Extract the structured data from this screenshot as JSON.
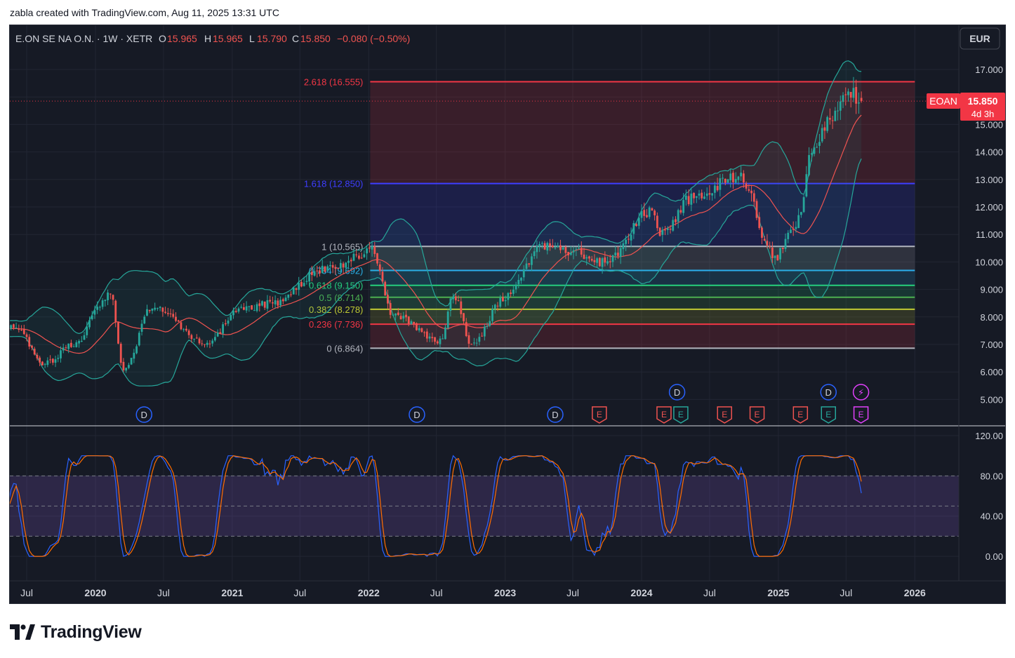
{
  "caption": "zabla created with TradingView.com, Aug 11, 2025 13:31 UTC",
  "footer": {
    "brand": "TradingView"
  },
  "header": {
    "symbol": "E.ON SE NA O.N. · 1W · XETR",
    "o_label": "O",
    "o_val": "15.965",
    "h_label": "H",
    "h_val": "15.965",
    "l_label": "L",
    "l_val": "15.790",
    "c_label": "C",
    "c_val": "15.850",
    "change": "−0.080 (−0.50%)"
  },
  "currency_button": "EUR",
  "price_tag": {
    "ticker": "EOAN",
    "price": "15.850",
    "countdown": "4d 3h"
  },
  "colors": {
    "up": "#26a69a",
    "down": "#ef5350",
    "bb_band": "#26a69a",
    "bb_basis": "#ef5350",
    "stoch_k": "#2962ff",
    "stoch_d": "#ff6d00",
    "bg": "#161a25"
  },
  "chart_data": [
    {
      "type": "candlestick",
      "title": "",
      "xlabel": "",
      "ylabel": "",
      "ylim": [
        4.2,
        17.6
      ],
      "x_ticks": [
        "Jul",
        "2020",
        "Jul",
        "2021",
        "Jul",
        "2022",
        "Jul",
        "2023",
        "Jul",
        "2024",
        "Jul",
        "2025",
        "Jul",
        "2026"
      ],
      "y_ticks": [
        "17.000",
        "16.000",
        "15.000",
        "14.000",
        "13.000",
        "12.000",
        "11.000",
        "10.000",
        "9.000",
        "8.000",
        "7.000",
        "6.000",
        "5.000"
      ],
      "anchors": [
        {
          "date": "2019-06-01",
          "close": 7.6
        },
        {
          "date": "2019-08-20",
          "close": 6.3
        },
        {
          "date": "2019-11-01",
          "close": 7.0
        },
        {
          "date": "2020-02-10",
          "close": 8.8
        },
        {
          "date": "2020-03-16",
          "close": 6.0
        },
        {
          "date": "2020-06-01",
          "close": 8.4
        },
        {
          "date": "2020-10-25",
          "close": 7.0
        },
        {
          "date": "2021-01-20",
          "close": 8.3
        },
        {
          "date": "2021-04-20",
          "close": 8.5
        },
        {
          "date": "2021-09-01",
          "close": 9.7
        },
        {
          "date": "2022-01-10",
          "close": 10.4
        },
        {
          "date": "2022-03-07",
          "close": 8.1
        },
        {
          "date": "2022-07-10",
          "close": 7.1
        },
        {
          "date": "2022-08-15",
          "close": 8.8
        },
        {
          "date": "2022-10-05",
          "close": 7.0
        },
        {
          "date": "2022-12-31",
          "close": 8.7
        },
        {
          "date": "2023-04-10",
          "close": 10.6
        },
        {
          "date": "2023-06-20",
          "close": 10.4
        },
        {
          "date": "2023-09-25",
          "close": 10.0
        },
        {
          "date": "2024-01-20",
          "close": 11.8
        },
        {
          "date": "2024-03-01",
          "close": 11.0
        },
        {
          "date": "2024-05-10",
          "close": 12.3
        },
        {
          "date": "2024-09-15",
          "close": 13.1
        },
        {
          "date": "2024-12-25",
          "close": 10.2
        },
        {
          "date": "2025-02-15",
          "close": 11.3
        },
        {
          "date": "2025-04-10",
          "close": 14.4
        },
        {
          "date": "2025-05-25",
          "close": 15.3
        },
        {
          "date": "2025-07-10",
          "close": 16.2
        },
        {
          "date": "2025-08-11",
          "close": 15.85
        }
      ],
      "fib": {
        "start_date": "2022-01-05",
        "end_date": "2026-01-01",
        "levels": [
          {
            "label": "2.618 (16.555)",
            "value": 16.555,
            "color": "#f23645"
          },
          {
            "label": "1.618 (12.850)",
            "value": 12.85,
            "color": "#3e3eff"
          },
          {
            "label": "1 (10.565)",
            "value": 10.565,
            "color": "#b2b5be"
          },
          {
            "label": "0.764 (9.692)",
            "value": 9.692,
            "color": "#2bb0ee"
          },
          {
            "label": "0.618 (9.150)",
            "value": 9.15,
            "color": "#26d07c"
          },
          {
            "label": "0.5 (8.714)",
            "value": 8.714,
            "color": "#4caf50"
          },
          {
            "label": "0.382 (8.278)",
            "value": 8.278,
            "color": "#c0ca33"
          },
          {
            "label": "0.236 (7.736)",
            "value": 7.736,
            "color": "#f23645"
          },
          {
            "label": "0 (6.864)",
            "value": 6.864,
            "color": "#b2b5be"
          }
        ]
      },
      "events": [
        {
          "date": "2020-05-10",
          "kind": "D",
          "row": 1
        },
        {
          "date": "2022-05-10",
          "kind": "D",
          "row": 1
        },
        {
          "date": "2023-05-15",
          "kind": "D",
          "row": 1
        },
        {
          "date": "2024-04-05",
          "kind": "D",
          "row": 0
        },
        {
          "date": "2025-05-15",
          "kind": "D",
          "row": 0
        },
        {
          "date": "2025-08-10",
          "kind": "⚡",
          "row": 0
        },
        {
          "date": "2023-09-10",
          "kind": "E",
          "row": 1,
          "color": "#ef5350"
        },
        {
          "date": "2024-03-01",
          "kind": "E",
          "row": 1,
          "color": "#ef5350"
        },
        {
          "date": "2024-04-15",
          "kind": "E",
          "row": 1,
          "color": "#26a69a"
        },
        {
          "date": "2024-08-10",
          "kind": "E",
          "row": 1,
          "color": "#ef5350"
        },
        {
          "date": "2024-11-05",
          "kind": "E",
          "row": 1,
          "color": "#ef5350"
        },
        {
          "date": "2025-03-01",
          "kind": "E",
          "row": 1,
          "color": "#ef5350"
        },
        {
          "date": "2025-05-15",
          "kind": "E",
          "row": 1,
          "color": "#26a69a"
        },
        {
          "date": "2025-08-10",
          "kind": "E",
          "row": 1,
          "color": "#e040fb"
        }
      ]
    },
    {
      "type": "line",
      "title": "",
      "ylim": [
        -20,
        120
      ],
      "y_ticks": [
        "120.00",
        "80.00",
        "40.00",
        "0.00"
      ],
      "bands": [
        20,
        50,
        80
      ],
      "series": [
        {
          "values": []
        },
        {
          "values": []
        }
      ]
    }
  ]
}
